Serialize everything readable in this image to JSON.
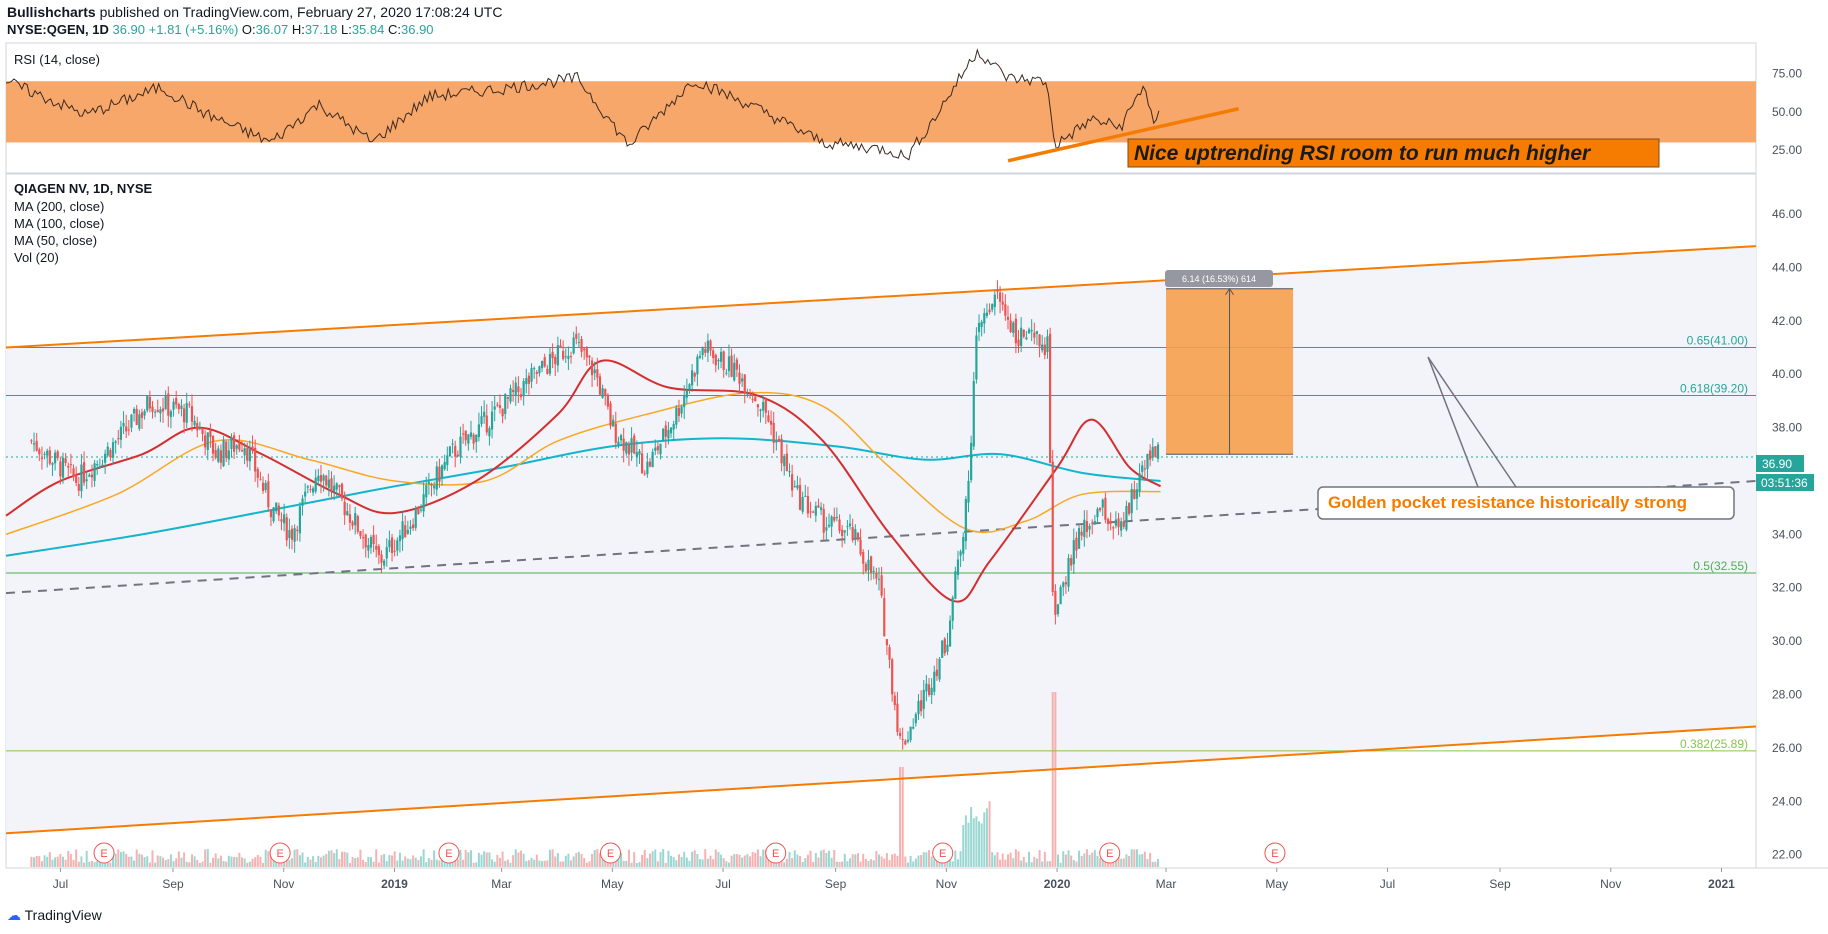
{
  "header": {
    "author": "Bullishcharts",
    "published": " published on TradingView.com, February 27, 2020 17:08:24 UTC",
    "symbol": "NYSE:QGEN, 1D",
    "last": "36.90",
    "change": "+1.81 (+5.16%)",
    "o_label": "O:",
    "open": "36.07",
    "h_label": "H:",
    "high": "37.18",
    "l_label": "L:",
    "low": "35.84",
    "c_label": "C:",
    "close": "36.90"
  },
  "rsi_panel": {
    "title": "RSI (14, close)",
    "ticks": [
      "75.00",
      "50.00",
      "25.00"
    ],
    "annotation": "Nice uptrending RSI room to run much higher"
  },
  "main_panel": {
    "legend": [
      "QIAGEN NV, 1D, NYSE",
      "MA (200, close)",
      "MA (100, close)",
      "MA (50, close)",
      "Vol (20)"
    ],
    "price_ticks": [
      "46.00",
      "44.00",
      "42.00",
      "40.00",
      "38.00",
      "36.00",
      "34.00",
      "32.00",
      "30.00",
      "28.00",
      "26.00",
      "24.00",
      "22.00"
    ],
    "price_tag": "36.90",
    "countdown_tag": "03:51:36",
    "measure_label": "6.14 (16.53%) 614",
    "callout": "Golden pocket resistance historically strong",
    "fib_levels": [
      {
        "label": "0.65(41.00)",
        "price": 41.0,
        "color": "#26a69a"
      },
      {
        "label": "0.618(39.20)",
        "price": 39.2,
        "color": "#26a69a"
      },
      {
        "label": "0.5(32.55)",
        "price": 32.55,
        "color": "#4caf50"
      },
      {
        "label": "0.382(25.89)",
        "price": 25.89,
        "color": "#8bc34a"
      }
    ],
    "earnings_marker": "E"
  },
  "time_axis": [
    "Jul",
    "Sep",
    "Nov",
    "2019",
    "Mar",
    "May",
    "Jul",
    "Sep",
    "Nov",
    "2020",
    "Mar",
    "May",
    "Jul",
    "Sep",
    "Nov",
    "2021"
  ],
  "footer": {
    "brand": "TradingView"
  },
  "colors": {
    "channel": "#f57c00",
    "rsi_band": "#f7a76a",
    "ma50": "#d32f2f",
    "ma100": "#f9a825",
    "ma200": "#12b5cb",
    "up": "#26a69a",
    "down": "#ef5350",
    "box": "#f7a04e"
  },
  "chart_data": {
    "type": "candlestick",
    "title": "QIAGEN NV, 1D, NYSE",
    "ylim": [
      21.5,
      47.5
    ],
    "x_range": [
      "2018-06",
      "2021-01"
    ],
    "price_path": [
      [
        "2018-06-15",
        37.5
      ],
      [
        "2018-07-10",
        36.0
      ],
      [
        "2018-08-01",
        37.5
      ],
      [
        "2018-08-20",
        39.0
      ],
      [
        "2018-09-10",
        38.5
      ],
      [
        "2018-09-25",
        37.0
      ],
      [
        "2018-10-10",
        37.5
      ],
      [
        "2018-10-25",
        35.0
      ],
      [
        "2018-11-05",
        34.0
      ],
      [
        "2018-11-20",
        36.5
      ],
      [
        "2018-12-05",
        35.0
      ],
      [
        "2018-12-24",
        33.0
      ],
      [
        "2019-01-10",
        34.5
      ],
      [
        "2019-02-01",
        37.0
      ],
      [
        "2019-02-25",
        38.5
      ],
      [
        "2019-03-20",
        40.0
      ],
      [
        "2019-04-10",
        41.2
      ],
      [
        "2019-04-22",
        40.0
      ],
      [
        "2019-05-01",
        38.0
      ],
      [
        "2019-05-20",
        36.5
      ],
      [
        "2019-06-05",
        38.5
      ],
      [
        "2019-06-20",
        41.0
      ],
      [
        "2019-07-10",
        40.0
      ],
      [
        "2019-07-25",
        38.5
      ],
      [
        "2019-08-10",
        35.5
      ],
      [
        "2019-08-25",
        34.5
      ],
      [
        "2019-09-10",
        34.0
      ],
      [
        "2019-09-25",
        32.0
      ],
      [
        "2019-10-07",
        26.0
      ],
      [
        "2019-10-20",
        28.0
      ],
      [
        "2019-11-01",
        30.0
      ],
      [
        "2019-11-12",
        35.0
      ],
      [
        "2019-11-18",
        41.5
      ],
      [
        "2019-11-28",
        43.0
      ],
      [
        "2019-12-10",
        41.5
      ],
      [
        "2019-12-27",
        41.0
      ],
      [
        "2019-12-30",
        30.5
      ],
      [
        "2020-01-10",
        33.5
      ],
      [
        "2020-01-25",
        35.0
      ],
      [
        "2020-02-05",
        34.0
      ],
      [
        "2020-02-12",
        35.5
      ],
      [
        "2020-02-20",
        37.2
      ],
      [
        "2020-02-27",
        36.9
      ]
    ],
    "ma50": [
      [
        "2018-06-01",
        34.7
      ],
      [
        "2018-07-01",
        36.0
      ],
      [
        "2018-08-15",
        37.0
      ],
      [
        "2018-09-15",
        38.0
      ],
      [
        "2018-10-20",
        37.0
      ],
      [
        "2018-12-01",
        35.5
      ],
      [
        "2019-01-01",
        34.8
      ],
      [
        "2019-02-15",
        36.0
      ],
      [
        "2019-04-01",
        38.5
      ],
      [
        "2019-04-25",
        40.5
      ],
      [
        "2019-06-01",
        39.5
      ],
      [
        "2019-07-20",
        39.2
      ],
      [
        "2019-08-25",
        37.5
      ],
      [
        "2019-10-01",
        34.0
      ],
      [
        "2019-11-05",
        31.5
      ],
      [
        "2019-11-25",
        33.0
      ],
      [
        "2020-01-01",
        36.5
      ],
      [
        "2020-01-20",
        38.3
      ],
      [
        "2020-02-10",
        36.5
      ],
      [
        "2020-02-27",
        35.8
      ]
    ],
    "ma100": [
      [
        "2018-06-01",
        34.0
      ],
      [
        "2018-08-01",
        35.5
      ],
      [
        "2018-09-25",
        37.5
      ],
      [
        "2018-11-15",
        36.8
      ],
      [
        "2019-01-01",
        36.0
      ],
      [
        "2019-02-20",
        36.0
      ],
      [
        "2019-04-01",
        37.5
      ],
      [
        "2019-05-20",
        38.5
      ],
      [
        "2019-07-15",
        39.3
      ],
      [
        "2019-08-25",
        38.8
      ],
      [
        "2019-10-01",
        36.5
      ],
      [
        "2019-11-12",
        34.2
      ],
      [
        "2019-12-15",
        34.5
      ],
      [
        "2020-01-15",
        35.5
      ],
      [
        "2020-02-27",
        35.6
      ]
    ],
    "ma200": [
      [
        "2018-06-01",
        33.2
      ],
      [
        "2018-08-15",
        34.0
      ],
      [
        "2018-11-01",
        35.0
      ],
      [
        "2019-01-01",
        35.8
      ],
      [
        "2019-03-01",
        36.5
      ],
      [
        "2019-05-01",
        37.3
      ],
      [
        "2019-07-01",
        37.6
      ],
      [
        "2019-09-01",
        37.3
      ],
      [
        "2019-10-20",
        36.8
      ],
      [
        "2019-12-01",
        37.0
      ],
      [
        "2020-01-15",
        36.3
      ],
      [
        "2020-02-27",
        36.0
      ]
    ],
    "channel_upper": [
      [
        "2018-06-01",
        41.0
      ],
      [
        "2021-01-20",
        44.8
      ]
    ],
    "channel_lower": [
      [
        "2018-06-01",
        22.8
      ],
      [
        "2021-01-20",
        26.8
      ]
    ],
    "dashed_trend": [
      [
        "2018-06-01",
        31.8
      ],
      [
        "2021-01-20",
        36.0
      ]
    ],
    "measure_box": {
      "from": "2020-03-01",
      "to": "2020-05-10",
      "low": 37.0,
      "high": 43.2
    },
    "rsi": [
      [
        "2018-06-01",
        70
      ],
      [
        "2018-07-15",
        48
      ],
      [
        "2018-08-25",
        66
      ],
      [
        "2018-09-20",
        48
      ],
      [
        "2018-10-25",
        30
      ],
      [
        "2018-11-20",
        55
      ],
      [
        "2018-12-20",
        30
      ],
      [
        "2019-01-20",
        60
      ],
      [
        "2019-03-01",
        65
      ],
      [
        "2019-04-12",
        72
      ],
      [
        "2019-05-10",
        28
      ],
      [
        "2019-06-15",
        71
      ],
      [
        "2019-07-20",
        52
      ],
      [
        "2019-08-25",
        30
      ],
      [
        "2019-10-01",
        25
      ],
      [
        "2019-10-10",
        20
      ],
      [
        "2019-10-25",
        45
      ],
      [
        "2019-11-18",
        90
      ],
      [
        "2019-12-05",
        72
      ],
      [
        "2019-12-26",
        70
      ],
      [
        "2019-12-31",
        28
      ],
      [
        "2020-01-20",
        45
      ],
      [
        "2020-02-05",
        40
      ],
      [
        "2020-02-18",
        68
      ],
      [
        "2020-02-24",
        38
      ],
      [
        "2020-02-27",
        52
      ]
    ],
    "rsi_band": [
      30,
      70
    ],
    "rsi_ylim": [
      10,
      95
    ],
    "earnings_dates": [
      "2018-07-25",
      "2018-10-30",
      "2019-01-31",
      "2019-04-30",
      "2019-07-30",
      "2019-10-30",
      "2020-01-30",
      "2020-04-30"
    ]
  }
}
